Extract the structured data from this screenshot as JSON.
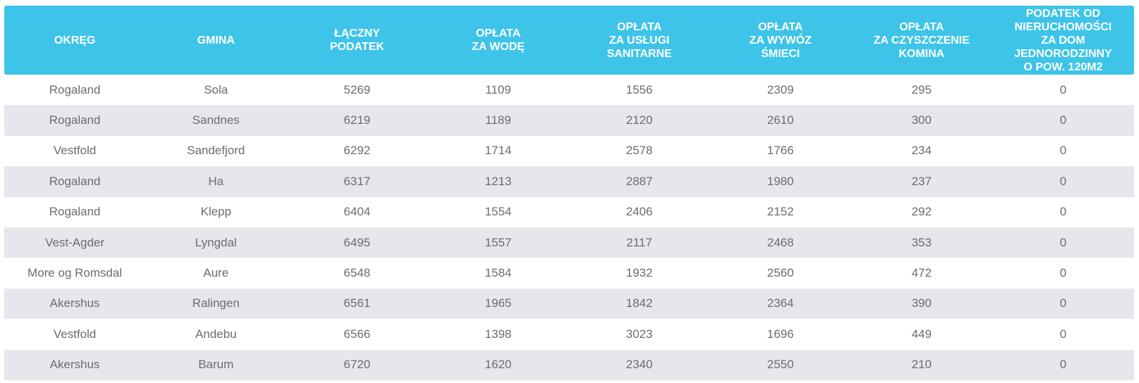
{
  "table": {
    "headers": [
      "OKRĘG",
      "GMINA",
      "ŁĄCZNY\nPODATEK",
      "OPŁATA\nZA WODĘ",
      "OPŁATA\nZA USŁUGI\nSANITARNE",
      "OPŁATA\nZA WYWÓZ\nŚMIECI",
      "OPŁATA\nZA CZYSZCZENIE\nKOMINA",
      "PODATEK OD NIERUCHOMOŚCI\nZA DOM JEDNORODZINNY\nO POW. 120M2"
    ],
    "rows": [
      [
        "Rogaland",
        "Sola",
        "5269",
        "1109",
        "1556",
        "2309",
        "295",
        "0"
      ],
      [
        "Rogaland",
        "Sandnes",
        "6219",
        "1189",
        "2120",
        "2610",
        "300",
        "0"
      ],
      [
        "Vestfold",
        "Sandefjord",
        "6292",
        "1714",
        "2578",
        "1766",
        "234",
        "0"
      ],
      [
        "Rogaland",
        "Ha",
        "6317",
        "1213",
        "2887",
        "1980",
        "237",
        "0"
      ],
      [
        "Rogaland",
        "Klepp",
        "6404",
        "1554",
        "2406",
        "2152",
        "292",
        "0"
      ],
      [
        "Vest-Agder",
        "Lyngdal",
        "6495",
        "1557",
        "2117",
        "2468",
        "353",
        "0"
      ],
      [
        "More og Romsdal",
        "Aure",
        "6548",
        "1584",
        "1932",
        "2560",
        "472",
        "0"
      ],
      [
        "Akershus",
        "Ralingen",
        "6561",
        "1965",
        "1842",
        "2364",
        "390",
        "0"
      ],
      [
        "Vestfold",
        "Andebu",
        "6566",
        "1398",
        "3023",
        "1696",
        "449",
        "0"
      ],
      [
        "Akershus",
        "Barum",
        "6720",
        "1620",
        "2340",
        "2550",
        "210",
        "0"
      ]
    ]
  },
  "colors": {
    "header_bg": "#3ec4e8",
    "header_text": "#ffffff",
    "stripe_bg": "#e6e7ec",
    "cell_text": "#6b6b72"
  }
}
